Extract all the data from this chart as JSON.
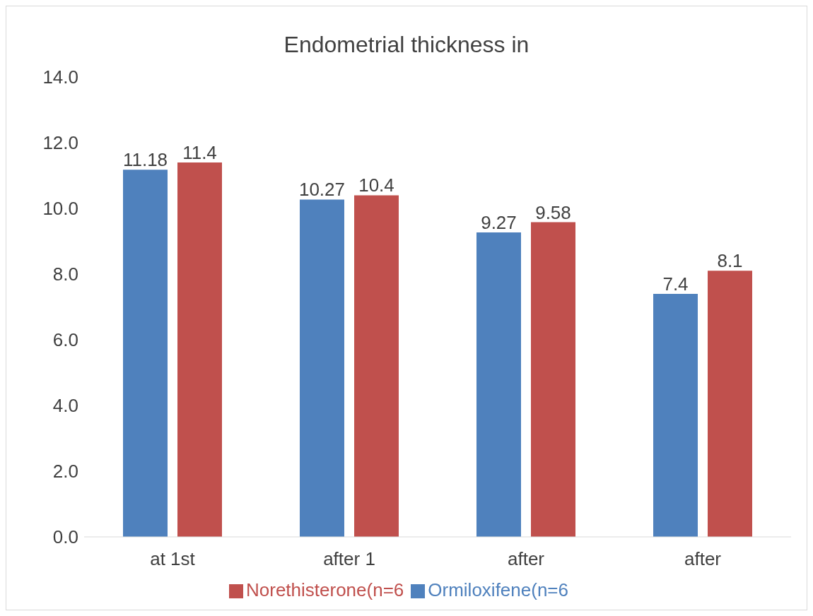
{
  "chart_data": {
    "type": "bar",
    "title": "Endometrial thickness in",
    "categories": [
      "at 1st",
      "after 1",
      "after",
      "after"
    ],
    "series": [
      {
        "name": "Ormiloxifene(n=6",
        "color": "#4f81bd",
        "values": [
          11.18,
          10.27,
          9.27,
          7.4
        ]
      },
      {
        "name": "Norethisterone(n=6",
        "color": "#c0504d",
        "values": [
          11.4,
          10.4,
          9.58,
          8.1
        ]
      }
    ],
    "ylim": [
      0,
      14
    ],
    "yticks": [
      {
        "value": 0,
        "label": "0.0"
      },
      {
        "value": 2,
        "label": "2.0"
      },
      {
        "value": 4,
        "label": "4.0"
      },
      {
        "value": 6,
        "label": "6.0"
      },
      {
        "value": 8,
        "label": "8.0"
      },
      {
        "value": 10,
        "label": "10.0"
      },
      {
        "value": 12,
        "label": "12.0"
      },
      {
        "value": 14,
        "label": "14.0"
      }
    ],
    "grid": false,
    "legend": "bottom",
    "data_labels": true
  }
}
